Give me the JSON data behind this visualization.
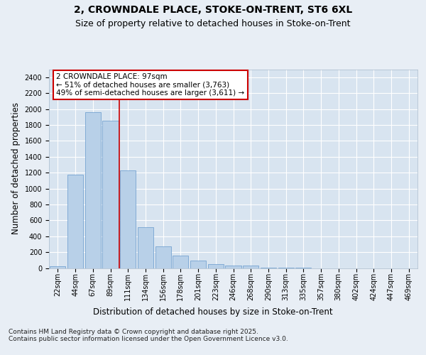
{
  "title": "2, CROWNDALE PLACE, STOKE-ON-TRENT, ST6 6XL",
  "subtitle": "Size of property relative to detached houses in Stoke-on-Trent",
  "xlabel": "Distribution of detached houses by size in Stoke-on-Trent",
  "ylabel": "Number of detached properties",
  "categories": [
    "22sqm",
    "44sqm",
    "67sqm",
    "89sqm",
    "111sqm",
    "134sqm",
    "156sqm",
    "178sqm",
    "201sqm",
    "223sqm",
    "246sqm",
    "268sqm",
    "290sqm",
    "313sqm",
    "335sqm",
    "357sqm",
    "380sqm",
    "402sqm",
    "424sqm",
    "447sqm",
    "469sqm"
  ],
  "values": [
    22,
    1170,
    1960,
    1850,
    1230,
    515,
    270,
    160,
    95,
    45,
    35,
    28,
    5,
    2,
    1,
    0,
    0,
    0,
    0,
    0,
    0
  ],
  "bar_color": "#b8d0e8",
  "bar_edge_color": "#6699cc",
  "vline_x": 3.5,
  "vline_color": "#cc0000",
  "annotation_text": "2 CROWNDALE PLACE: 97sqm\n← 51% of detached houses are smaller (3,763)\n49% of semi-detached houses are larger (3,611) →",
  "annotation_box_color": "#ffffff",
  "annotation_box_edge": "#cc0000",
  "ylim": [
    0,
    2500
  ],
  "yticks": [
    0,
    200,
    400,
    600,
    800,
    1000,
    1200,
    1400,
    1600,
    1800,
    2000,
    2200,
    2400
  ],
  "footer": "Contains HM Land Registry data © Crown copyright and database right 2025.\nContains public sector information licensed under the Open Government Licence v3.0.",
  "bg_color": "#e8eef5",
  "plot_bg_color": "#d8e4f0",
  "grid_color": "#ffffff",
  "title_fontsize": 10,
  "subtitle_fontsize": 9,
  "axis_label_fontsize": 8.5,
  "tick_fontsize": 7,
  "footer_fontsize": 6.5,
  "annotation_fontsize": 7.5
}
